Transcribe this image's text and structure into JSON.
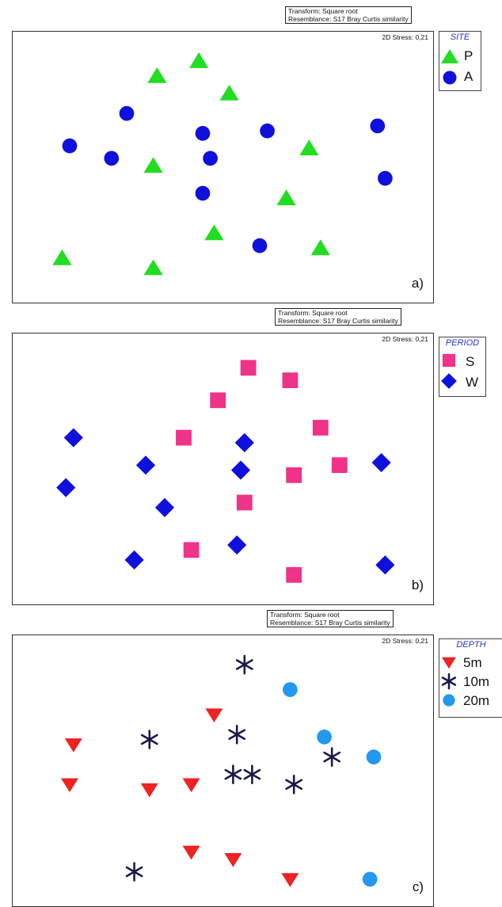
{
  "colors": {
    "green_triangle": "#22dd22",
    "blue_circle": "#1010dd",
    "pink_square": "#ee3388",
    "blue_diamond": "#1010dd",
    "red_triangle": "#ee2222",
    "navy_asterisk": "#1a1a4a",
    "light_blue_circle": "#2299ee",
    "legend_title": "#2233cc"
  },
  "chart_data": [
    {
      "type": "scatter",
      "panel_label": "a)",
      "transform_line1": "Transform: Square root",
      "transform_line2": "Resemblance: S17 Bray Curtis similarity",
      "stress_text": "2D Stress: 0,21",
      "legend_title": "SITE",
      "xlim": [
        0,
        100
      ],
      "ylim": [
        0,
        100
      ],
      "series": [
        {
          "name": "P",
          "marker": "triangle-up",
          "color": "#22dd22",
          "points": [
            [
              44,
              93
            ],
            [
              33,
              87
            ],
            [
              52,
              80
            ],
            [
              32,
              51
            ],
            [
              73,
              58
            ],
            [
              67,
              38
            ],
            [
              48,
              24
            ],
            [
              8,
              14
            ],
            [
              32,
              10
            ],
            [
              76,
              18
            ]
          ]
        },
        {
          "name": "A",
          "marker": "circle",
          "color": "#1010dd",
          "points": [
            [
              25,
              72
            ],
            [
              45,
              64
            ],
            [
              62,
              65
            ],
            [
              91,
              67
            ],
            [
              10,
              59
            ],
            [
              21,
              54
            ],
            [
              47,
              54
            ],
            [
              45,
              40
            ],
            [
              93,
              46
            ],
            [
              60,
              19
            ]
          ]
        }
      ]
    },
    {
      "type": "scatter",
      "panel_label": "b)",
      "transform_line1": "Transform: Square root",
      "transform_line2": "Resemblance: S17 Bray Curtis similarity",
      "stress_text": "2D Stress: 0,21",
      "legend_title": "PERIOD",
      "xlim": [
        0,
        100
      ],
      "ylim": [
        0,
        100
      ],
      "series": [
        {
          "name": "S",
          "marker": "square",
          "color": "#ee3388",
          "points": [
            [
              57,
              91
            ],
            [
              68,
              86
            ],
            [
              49,
              78
            ],
            [
              76,
              67
            ],
            [
              40,
              63
            ],
            [
              81,
              52
            ],
            [
              69,
              48
            ],
            [
              56,
              37
            ],
            [
              42,
              18
            ],
            [
              69,
              8
            ]
          ]
        },
        {
          "name": "W",
          "marker": "diamond",
          "color": "#1010dd",
          "points": [
            [
              11,
              63
            ],
            [
              56,
              61
            ],
            [
              30,
              52
            ],
            [
              55,
              50
            ],
            [
              92,
              53
            ],
            [
              9,
              43
            ],
            [
              35,
              35
            ],
            [
              54,
              20
            ],
            [
              27,
              14
            ],
            [
              93,
              12
            ]
          ]
        }
      ]
    },
    {
      "type": "scatter",
      "panel_label": "c)",
      "transform_line1": "Transform: Square root",
      "transform_line2": "Resemblance: S17 Bray Curtis similarity",
      "stress_text": "2D Stress: 0,21",
      "legend_title": "DEPTH",
      "xlim": [
        0,
        100
      ],
      "ylim": [
        0,
        100
      ],
      "series": [
        {
          "name": "5m",
          "marker": "triangle-down",
          "color": "#ee2222",
          "points": [
            [
              48,
              73
            ],
            [
              11,
              61
            ],
            [
              10,
              45
            ],
            [
              31,
              43
            ],
            [
              42,
              45
            ],
            [
              42,
              18
            ],
            [
              53,
              15
            ],
            [
              68,
              7
            ]
          ]
        },
        {
          "name": "10m",
          "marker": "asterisk",
          "color": "#1a1a4a",
          "points": [
            [
              56,
              93
            ],
            [
              54,
              65
            ],
            [
              31,
              63
            ],
            [
              79,
              56
            ],
            [
              53,
              49
            ],
            [
              58,
              49
            ],
            [
              69,
              45
            ],
            [
              27,
              10
            ]
          ]
        },
        {
          "name": "20m",
          "marker": "circle",
          "color": "#2299ee",
          "points": [
            [
              68,
              83
            ],
            [
              77,
              64
            ],
            [
              90,
              56
            ],
            [
              89,
              7
            ]
          ]
        }
      ]
    }
  ]
}
